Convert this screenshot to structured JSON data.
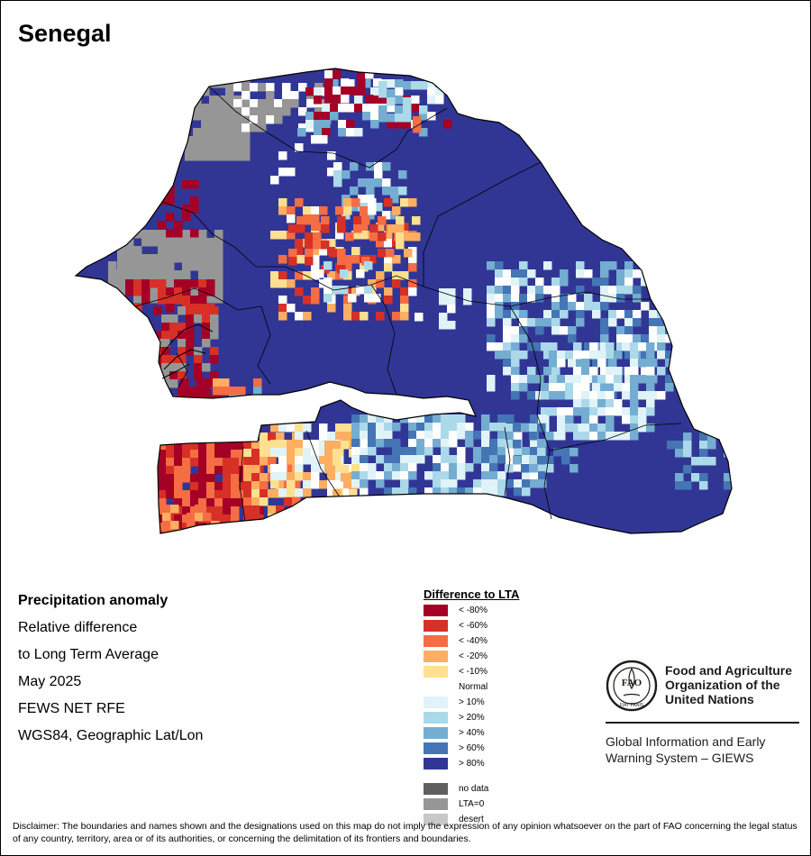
{
  "map": {
    "title": "Senegal"
  },
  "info": {
    "heading": "Precipitation anomaly",
    "line1": "Relative difference",
    "line2": "to Long Term Average",
    "period": "May 2025",
    "source": "FEWS NET RFE",
    "projection": "WGS84, Geographic Lat/Lon"
  },
  "legend": {
    "title": "Difference to LTA",
    "items": [
      {
        "label": "< -80%",
        "color": "#a50026"
      },
      {
        "label": "< -60%",
        "color": "#d73027"
      },
      {
        "label": "< -40%",
        "color": "#f46d43"
      },
      {
        "label": "< -20%",
        "color": "#fdae61"
      },
      {
        "label": "< -10%",
        "color": "#fee090"
      },
      {
        "label": "Normal",
        "color": "#ffffff"
      },
      {
        "label": "> 10%",
        "color": "#e0f3f8"
      },
      {
        "label": "> 20%",
        "color": "#abd9e9"
      },
      {
        "label": "> 40%",
        "color": "#74add1"
      },
      {
        "label": "> 60%",
        "color": "#4575b4"
      },
      {
        "label": "> 80%",
        "color": "#313695"
      }
    ],
    "extra": [
      {
        "label": "no data",
        "color": "#5f5f5f"
      },
      {
        "label": "LTA=0",
        "color": "#969696"
      },
      {
        "label": "desert",
        "color": "#c8c8c8"
      }
    ]
  },
  "org": {
    "emblem_letters": "FAO",
    "emblem_motto": "FIAT PANIS",
    "name": "Food and Agriculture Organization of the United Nations",
    "system": "Global Information and Early Warning System – GIEWS"
  },
  "disclaimer": "Disclaimer: The boundaries and names shown and the designations used on this map do not imply the expression of any opinion whatsoever on the part of FAO concerning the legal status of any country, territory, area or of its authorities, or concerning the delimitation of its frontiers and boundaries.",
  "colors": {
    "land_base": "#313695",
    "ocean": "#ffffff",
    "border": "#000000"
  }
}
